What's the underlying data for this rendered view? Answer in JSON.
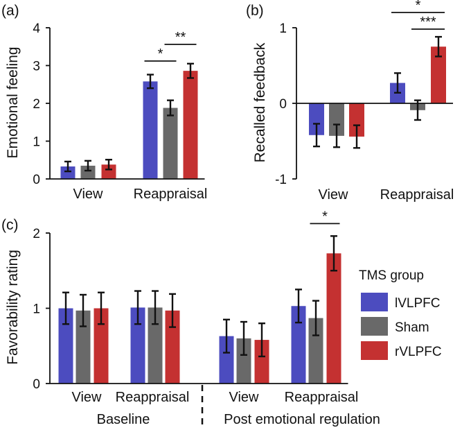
{
  "colors": {
    "lVLPFC": "#4c4cbf",
    "Sham": "#696969",
    "rVLPFC": "#c43131"
  },
  "legend": {
    "title": "TMS group",
    "items": [
      {
        "label": "lVLPFC",
        "color": "#4c4cbf"
      },
      {
        "label": "Sham",
        "color": "#696969"
      },
      {
        "label": "rVLPFC",
        "color": "#c43131"
      }
    ]
  },
  "chart_data": [
    {
      "id": "a",
      "panel": "(a)",
      "type": "bar",
      "ylabel": "Emotional feeling",
      "ylim": [
        0,
        4
      ],
      "yticks": [
        "0",
        "1",
        "2",
        "3",
        "4"
      ],
      "categories": [
        "View",
        "Reappraisal"
      ],
      "series": [
        {
          "name": "lVLPFC",
          "values": [
            0.33,
            2.58
          ],
          "errors": [
            0.13,
            0.18
          ]
        },
        {
          "name": "Sham",
          "values": [
            0.35,
            1.88
          ],
          "errors": [
            0.13,
            0.2
          ]
        },
        {
          "name": "rVLPFC",
          "values": [
            0.38,
            2.86
          ],
          "errors": [
            0.13,
            0.19
          ]
        }
      ],
      "significance": [
        {
          "category": 1,
          "from": "lVLPFC",
          "to": "Sham",
          "label": "*"
        },
        {
          "category": 1,
          "from": "Sham",
          "to": "rVLPFC",
          "label": "**"
        }
      ]
    },
    {
      "id": "b",
      "panel": "(b)",
      "type": "bar",
      "ylabel": "Recalled feedback",
      "ylim": [
        -1,
        1
      ],
      "yticks": [
        "-1",
        "0",
        "1"
      ],
      "categories": [
        "View",
        "Reappraisal"
      ],
      "series": [
        {
          "name": "lVLPFC",
          "values": [
            -0.42,
            0.27
          ],
          "errors": [
            0.15,
            0.13
          ]
        },
        {
          "name": "Sham",
          "values": [
            -0.43,
            -0.09
          ],
          "errors": [
            0.15,
            0.13
          ]
        },
        {
          "name": "rVLPFC",
          "values": [
            -0.44,
            0.75
          ],
          "errors": [
            0.15,
            0.13
          ]
        }
      ],
      "significance": [
        {
          "category": 1,
          "from": "lVLPFC",
          "to": "rVLPFC",
          "label": "*"
        },
        {
          "category": 1,
          "from": "Sham",
          "to": "rVLPFC",
          "label": "***"
        }
      ]
    },
    {
      "id": "c",
      "panel": "(c)",
      "type": "bar",
      "ylabel": "Favorability rating",
      "ylim": [
        0,
        2
      ],
      "yticks": [
        "0",
        "1",
        "2"
      ],
      "categories": [
        "View",
        "Reappraisal",
        "View",
        "Reappraisal"
      ],
      "groups": [
        "Baseline",
        "Post emotional regulation"
      ],
      "series": [
        {
          "name": "lVLPFC",
          "values": [
            1.0,
            1.01,
            0.63,
            1.03
          ],
          "errors": [
            0.21,
            0.22,
            0.22,
            0.22
          ]
        },
        {
          "name": "Sham",
          "values": [
            0.97,
            1.01,
            0.6,
            0.87
          ],
          "errors": [
            0.21,
            0.22,
            0.22,
            0.23
          ]
        },
        {
          "name": "rVLPFC",
          "values": [
            1.0,
            0.97,
            0.58,
            1.73
          ],
          "errors": [
            0.21,
            0.22,
            0.22,
            0.23
          ]
        }
      ],
      "significance": [
        {
          "category": 3,
          "from": "Sham",
          "to": "rVLPFC",
          "label": "*"
        }
      ]
    }
  ]
}
